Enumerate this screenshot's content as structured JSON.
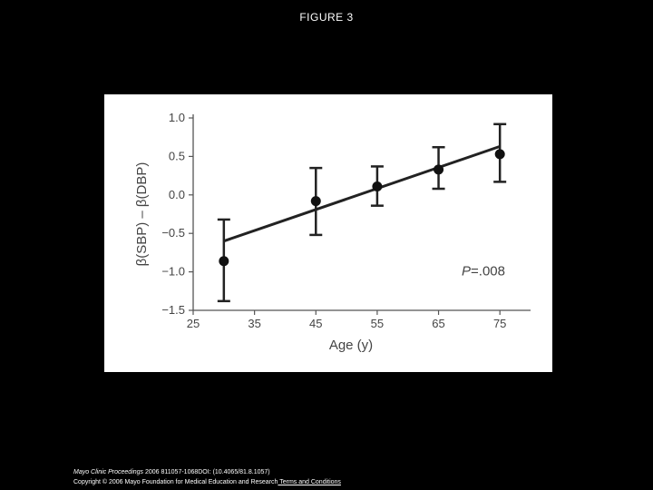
{
  "page": {
    "title": "FIGURE 3"
  },
  "chart_data": {
    "type": "scatter",
    "title": "",
    "xlabel": "Age (y)",
    "ylabel": "β(SBP) – β(DBP)",
    "xlim": [
      25,
      80
    ],
    "ylim": [
      -1.5,
      1.0
    ],
    "x_ticks": [
      "25",
      "35",
      "45",
      "55",
      "65",
      "75"
    ],
    "y_ticks": [
      "1.0",
      "0.5",
      "0.0",
      "−0.5",
      "−1.0",
      "−1.5"
    ],
    "x_tick_values": [
      25,
      35,
      45,
      55,
      65,
      75
    ],
    "y_tick_values": [
      1.0,
      0.5,
      0.0,
      -0.5,
      -1.0,
      -1.5
    ],
    "series": [
      {
        "points": [
          {
            "x": 30,
            "y": -0.86,
            "low": -1.38,
            "high": -0.32
          },
          {
            "x": 45,
            "y": -0.08,
            "low": -0.52,
            "high": 0.35
          },
          {
            "x": 55,
            "y": 0.11,
            "low": -0.14,
            "high": 0.37
          },
          {
            "x": 65,
            "y": 0.33,
            "low": 0.08,
            "high": 0.62
          },
          {
            "x": 75,
            "y": 0.53,
            "low": 0.17,
            "high": 0.92
          }
        ]
      }
    ],
    "trend_line": {
      "x": [
        30,
        75
      ],
      "y": [
        -0.6,
        0.63
      ]
    },
    "annotation": {
      "prefix": "P",
      "value": "=.008"
    },
    "grid": false
  },
  "footer": {
    "journal": "Mayo Clinic Proceedings",
    "citation": " 2006 811057-1068DOI: (10.4065/81.8.1057)",
    "copyright": "Copyright © 2006 Mayo Foundation for Medical Education and Research",
    "terms_link": " Terms and Conditions"
  }
}
